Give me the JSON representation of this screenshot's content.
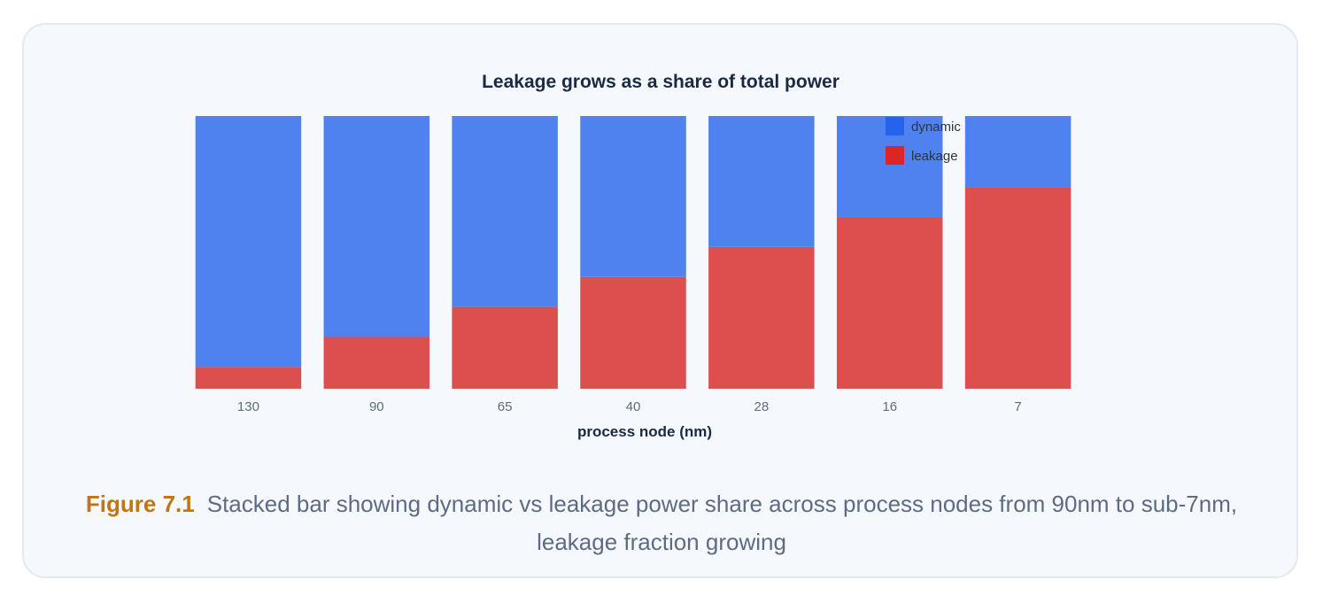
{
  "figure": {
    "label": "Figure 7.1",
    "caption": "Stacked bar showing dynamic vs leakage power share across process nodes from 90nm to sub-7nm, leakage fraction growing"
  },
  "chart_data": {
    "type": "bar",
    "stacked": true,
    "title": "Leakage grows as a share of total power",
    "xlabel": "process node (nm)",
    "ylabel": "",
    "categories": [
      "130",
      "90",
      "65",
      "40",
      "28",
      "16",
      "7"
    ],
    "series": [
      {
        "name": "leakage",
        "color": "#dd4f4f",
        "values": [
          8,
          19,
          30,
          41,
          52,
          63,
          74
        ]
      },
      {
        "name": "dynamic",
        "color": "#4f81ef",
        "values": [
          92,
          81,
          70,
          59,
          48,
          37,
          26
        ]
      }
    ],
    "ylim": [
      0,
      100
    ],
    "y_axis_visible": false,
    "grid": false,
    "legend": {
      "position": "top-right",
      "entries": [
        {
          "name": "dynamic",
          "color": "#2563eb"
        },
        {
          "name": "leakage",
          "color": "#dc2626"
        }
      ]
    }
  }
}
